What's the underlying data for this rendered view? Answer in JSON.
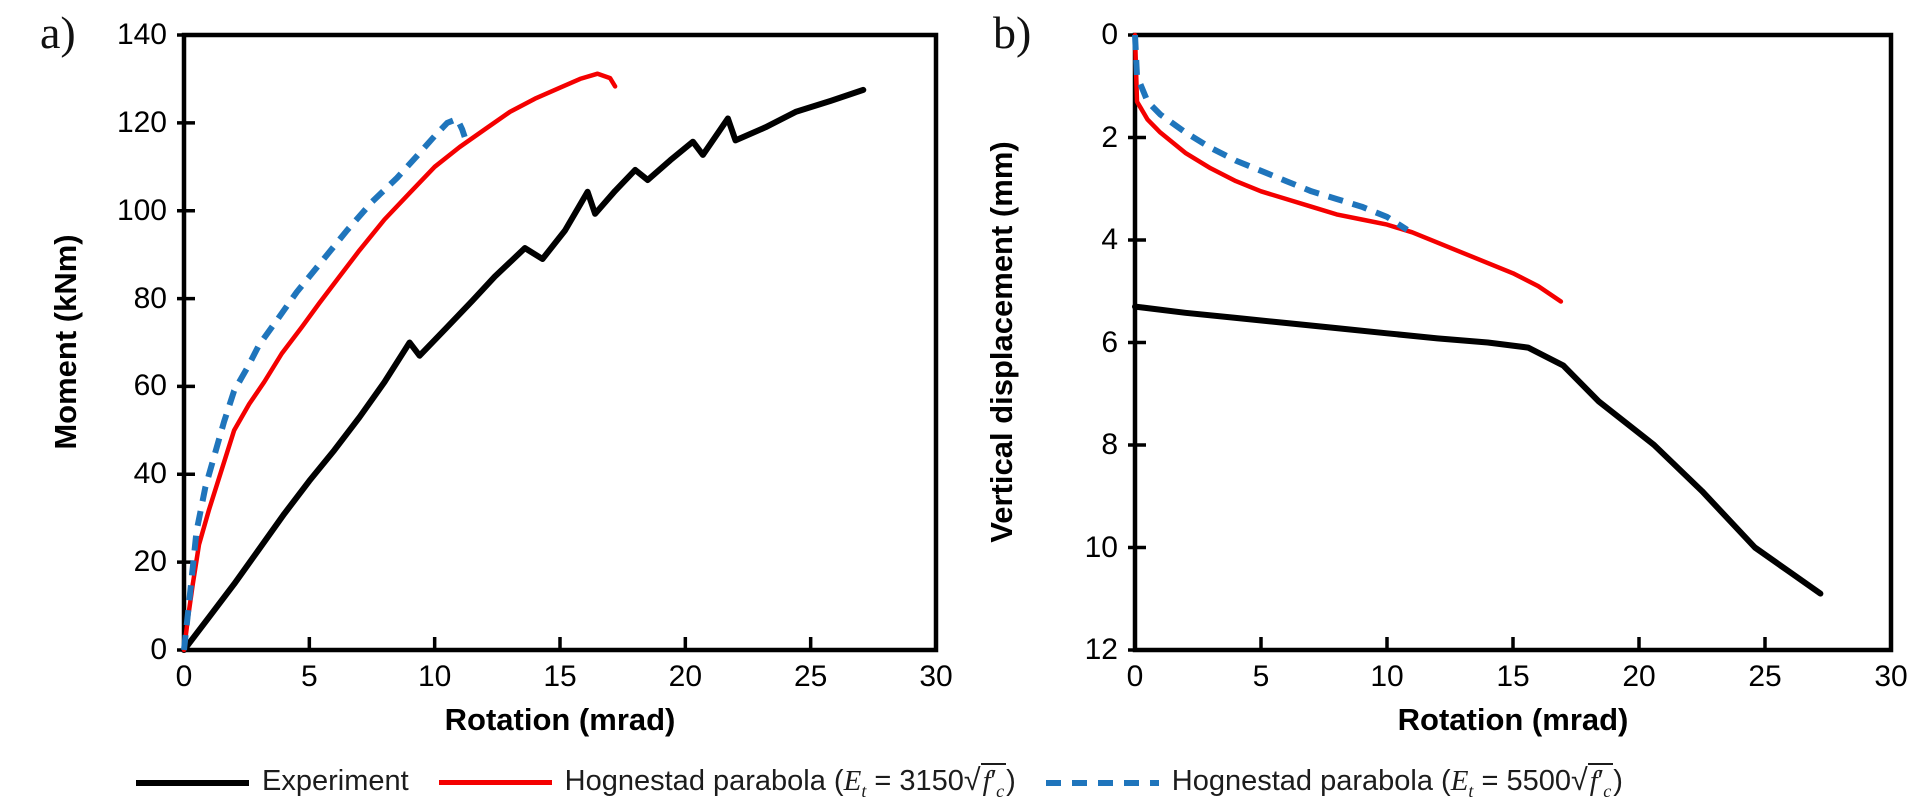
{
  "figure": {
    "background": "#FFFFFF",
    "panels": [
      {
        "tag": "a)"
      },
      {
        "tag": "b)"
      }
    ]
  },
  "colors": {
    "experiment": "#000000",
    "hognestad_3150": "#F40000",
    "hognestad_5500": "#1F75BC",
    "axis": "#000000"
  },
  "legend": {
    "items": [
      {
        "name": "Experiment",
        "color": "#000000",
        "dash": "solid",
        "parts": {
          "before": "Experiment",
          "E": "",
          "Esub": "",
          "eq": "",
          "sqrt": "",
          "f": "",
          "fprime": "",
          "fsub": "",
          "after": ""
        }
      },
      {
        "name": "Hognestad parabola (Et = 3150√f′c)",
        "color": "#F40000",
        "dash": "solid",
        "parts": {
          "before": "Hognestad parabola (",
          "E": "E",
          "Esub": "t",
          "eq": " = 3150",
          "sqrt": "√",
          "f": "f",
          "fprime": "′",
          "fsub": "c",
          "after": ")"
        }
      },
      {
        "name": "Hognestad parabola (Et = 5500√f′c)",
        "color": "#1F75BC",
        "dash": "dashed",
        "parts": {
          "before": "Hognestad parabola (",
          "E": "E",
          "Esub": "t",
          "eq": " = 5500",
          "sqrt": "√",
          "f": "f",
          "fprime": "′",
          "fsub": "c",
          "after": ")"
        }
      }
    ]
  },
  "chart_data": [
    {
      "type": "line",
      "panel": "a)",
      "xlabel": "Rotation (mrad)",
      "ylabel": "Moment (kNm)",
      "xlim": [
        0,
        30
      ],
      "ylim": [
        0,
        140
      ],
      "xticks": [
        0,
        5,
        10,
        15,
        20,
        25,
        30
      ],
      "yticks": [
        0,
        20,
        40,
        60,
        80,
        100,
        120,
        140
      ],
      "y_reversed": false,
      "grid": false,
      "legend_position": "bottom",
      "series": [
        {
          "key": "experiment",
          "name": "Experiment",
          "color": "#000000",
          "dash": "solid",
          "width": 6,
          "points": [
            [
              0,
              0
            ],
            [
              1,
              7.5
            ],
            [
              2,
              15
            ],
            [
              3,
              23
            ],
            [
              4,
              31
            ],
            [
              5,
              38.5
            ],
            [
              6,
              45.5
            ],
            [
              7,
              53
            ],
            [
              8,
              61
            ],
            [
              9,
              70
            ],
            [
              9.4,
              67
            ],
            [
              10.5,
              73.5
            ],
            [
              11.5,
              79.5
            ],
            [
              12.4,
              85
            ],
            [
              13.6,
              91.5
            ],
            [
              14.3,
              89
            ],
            [
              15.2,
              95.5
            ],
            [
              16.1,
              104.3
            ],
            [
              16.4,
              99.3
            ],
            [
              17.2,
              104.5
            ],
            [
              18,
              109.3
            ],
            [
              18.5,
              107
            ],
            [
              19.4,
              111.5
            ],
            [
              20.3,
              115.7
            ],
            [
              20.7,
              112.7
            ],
            [
              21.7,
              121
            ],
            [
              22,
              116
            ],
            [
              23.2,
              119
            ],
            [
              24.4,
              122.5
            ],
            [
              25.8,
              125
            ],
            [
              27.1,
              127.5
            ]
          ]
        },
        {
          "key": "hognestad-3150",
          "name": "Hognestad parabola (Et = 3150√f′c)",
          "color": "#F40000",
          "dash": "solid",
          "width": 4.5,
          "points": [
            [
              0,
              0
            ],
            [
              0.15,
              7
            ],
            [
              0.35,
              15
            ],
            [
              0.6,
              24
            ],
            [
              1,
              32
            ],
            [
              1.5,
              41
            ],
            [
              2,
              50
            ],
            [
              2.6,
              56
            ],
            [
              3.2,
              61
            ],
            [
              3.9,
              67.5
            ],
            [
              4.7,
              73.5
            ],
            [
              5.4,
              79
            ],
            [
              6.2,
              85
            ],
            [
              7,
              91
            ],
            [
              8,
              98
            ],
            [
              9,
              104
            ],
            [
              10,
              110
            ],
            [
              11,
              114.5
            ],
            [
              12,
              118.5
            ],
            [
              13,
              122.5
            ],
            [
              14,
              125.5
            ],
            [
              15,
              128
            ],
            [
              15.8,
              130
            ],
            [
              16.5,
              131.2
            ],
            [
              17,
              130.2
            ],
            [
              17.2,
              128.3
            ]
          ]
        },
        {
          "key": "hognestad-5500",
          "name": "Hognestad parabola (Et = 5500√f′c)",
          "color": "#1F75BC",
          "dash": "dashed",
          "width": 6,
          "points": [
            [
              0,
              0
            ],
            [
              0.15,
              8
            ],
            [
              0.3,
              16
            ],
            [
              0.5,
              27
            ],
            [
              0.85,
              37
            ],
            [
              1.25,
              45
            ],
            [
              1.6,
              52
            ],
            [
              2,
              59
            ],
            [
              2.55,
              64.5
            ],
            [
              3,
              69.5
            ],
            [
              3.7,
              75
            ],
            [
              4.5,
              81.5
            ],
            [
              5.5,
              88.5
            ],
            [
              6.5,
              95.5
            ],
            [
              7.5,
              102
            ],
            [
              8.5,
              107.5
            ],
            [
              9.3,
              112.5
            ],
            [
              10,
              117
            ],
            [
              10.5,
              120
            ],
            [
              10.9,
              120.9
            ],
            [
              11.1,
              118.5
            ],
            [
              11.2,
              116.8
            ]
          ]
        }
      ]
    },
    {
      "type": "line",
      "panel": "b)",
      "xlabel": "Rotation (mrad)",
      "ylabel": "Vertical displacement (mm)",
      "xlim": [
        0,
        30
      ],
      "ylim": [
        0,
        12
      ],
      "xticks": [
        0,
        5,
        10,
        15,
        20,
        25,
        30
      ],
      "yticks": [
        0,
        2,
        4,
        6,
        8,
        10,
        12
      ],
      "y_reversed": true,
      "grid": false,
      "legend_position": "bottom",
      "series": [
        {
          "key": "experiment",
          "name": "Experiment",
          "color": "#000000",
          "dash": "solid",
          "width": 6,
          "points": [
            [
              0,
              5.3
            ],
            [
              2,
              5.42
            ],
            [
              4,
              5.52
            ],
            [
              6,
              5.62
            ],
            [
              8,
              5.72
            ],
            [
              10,
              5.82
            ],
            [
              12,
              5.92
            ],
            [
              14,
              6.0
            ],
            [
              15.6,
              6.1
            ],
            [
              17,
              6.45
            ],
            [
              18.4,
              7.15
            ],
            [
              20.6,
              8
            ],
            [
              22.5,
              8.9
            ],
            [
              24.6,
              10
            ],
            [
              25.9,
              10.45
            ],
            [
              27.2,
              10.9
            ]
          ]
        },
        {
          "key": "hognestad-3150",
          "name": "Hognestad parabola (Et = 3150√f′c)",
          "color": "#F40000",
          "dash": "solid",
          "width": 4.5,
          "points": [
            [
              0,
              0
            ],
            [
              0.08,
              1.3
            ],
            [
              0.5,
              1.65
            ],
            [
              1,
              1.9
            ],
            [
              1.5,
              2.1
            ],
            [
              2,
              2.3
            ],
            [
              3,
              2.6
            ],
            [
              4,
              2.85
            ],
            [
              5,
              3.05
            ],
            [
              6,
              3.2
            ],
            [
              7,
              3.35
            ],
            [
              8,
              3.5
            ],
            [
              9,
              3.6
            ],
            [
              10,
              3.7
            ],
            [
              11,
              3.85
            ],
            [
              12,
              4.05
            ],
            [
              13,
              4.25
            ],
            [
              14,
              4.45
            ],
            [
              15,
              4.65
            ],
            [
              16,
              4.9
            ],
            [
              16.9,
              5.2
            ]
          ]
        },
        {
          "key": "hognestad-5500",
          "name": "Hognestad parabola (Et = 5500√f′c)",
          "color": "#1F75BC",
          "dash": "dashed",
          "width": 6,
          "points": [
            [
              0,
              0
            ],
            [
              0.08,
              0.8
            ],
            [
              0.5,
              1.3
            ],
            [
              1,
              1.55
            ],
            [
              2,
              1.9
            ],
            [
              3,
              2.2
            ],
            [
              4,
              2.45
            ],
            [
              5,
              2.65
            ],
            [
              6,
              2.85
            ],
            [
              7,
              3.05
            ],
            [
              8,
              3.2
            ],
            [
              9,
              3.35
            ],
            [
              10,
              3.55
            ],
            [
              10.8,
              3.8
            ]
          ]
        }
      ]
    }
  ]
}
